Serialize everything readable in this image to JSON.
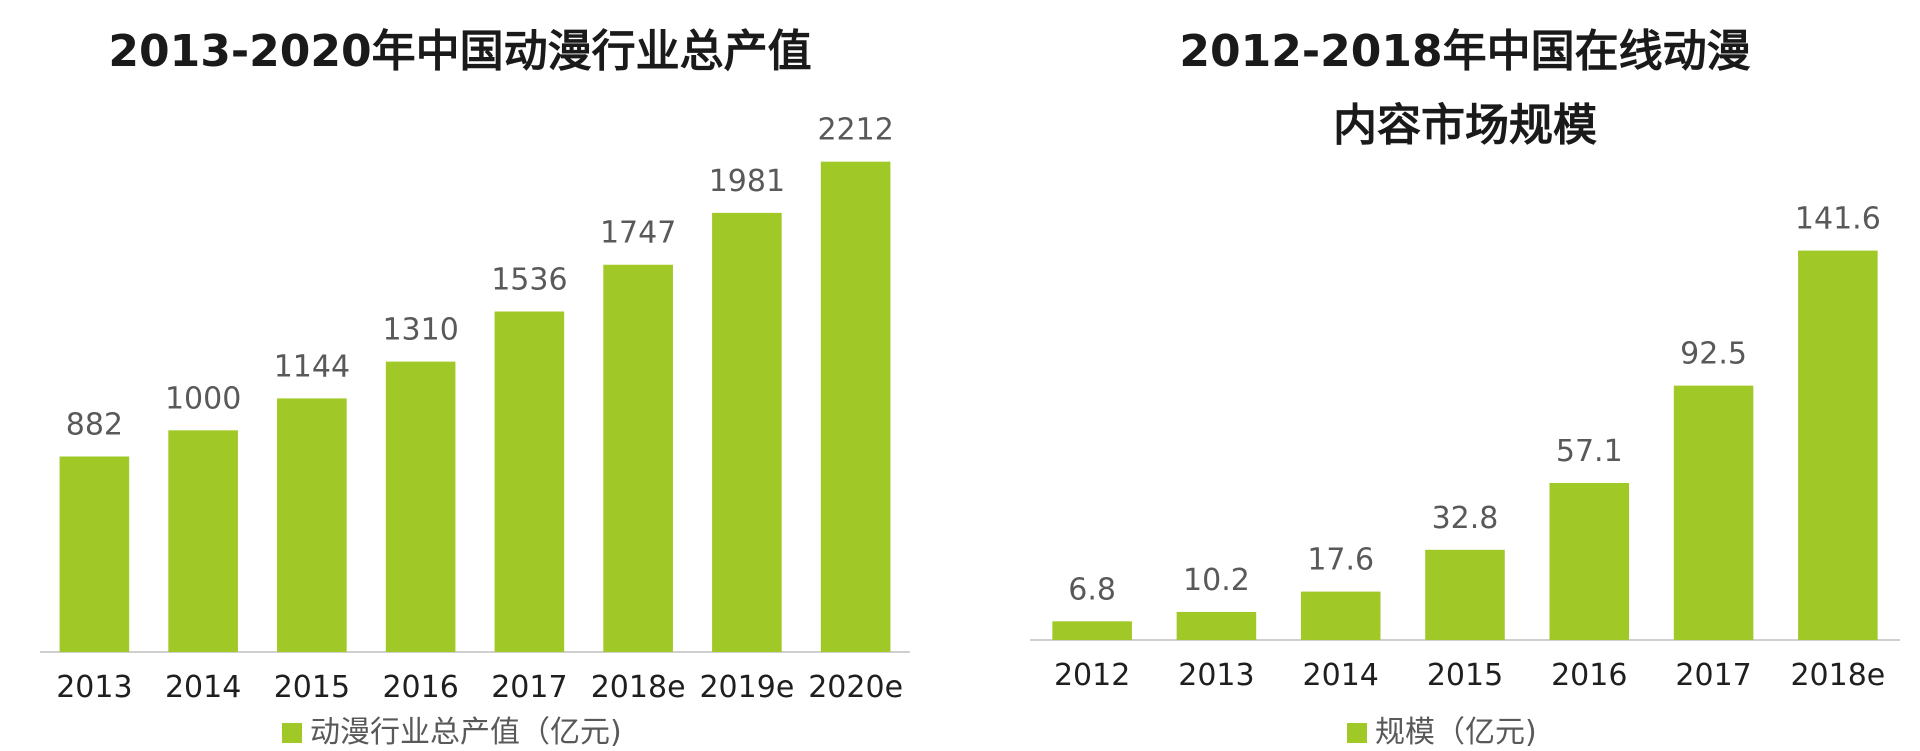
{
  "colors": {
    "bar": "#a0c826",
    "axis": "#cfcfcf",
    "title": "#1a1a1a",
    "value_label": "#595959",
    "tick_label": "#1f1f1f"
  },
  "chart_data": [
    {
      "type": "bar",
      "title": "2013-2020年中国动漫行业总产值",
      "title_lines": [
        "2013-2020年中国动漫行业总产值"
      ],
      "categories": [
        "2013",
        "2014",
        "2015",
        "2016",
        "2017",
        "2018e",
        "2019e",
        "2020e"
      ],
      "series": [
        {
          "name": "动漫行业总产值（亿元)",
          "values": [
            882,
            1000,
            1144,
            1310,
            1536,
            1747,
            1981,
            2212
          ]
        }
      ],
      "ylim": [
        0,
        2400
      ],
      "grid": false,
      "legend": "bottom-center"
    },
    {
      "type": "bar",
      "title": "2012-2018年中国在线动漫内容市场规模",
      "title_lines": [
        "2012-2018年中国在线动漫",
        "内容市场规模"
      ],
      "categories": [
        "2012",
        "2013",
        "2014",
        "2015",
        "2016",
        "2017",
        "2018e"
      ],
      "series": [
        {
          "name": "规模（亿元)",
          "values": [
            6.8,
            10.2,
            17.6,
            32.8,
            57.1,
            92.5,
            141.6
          ]
        }
      ],
      "ylim": [
        0,
        160
      ],
      "grid": false,
      "legend": "bottom-center"
    }
  ]
}
